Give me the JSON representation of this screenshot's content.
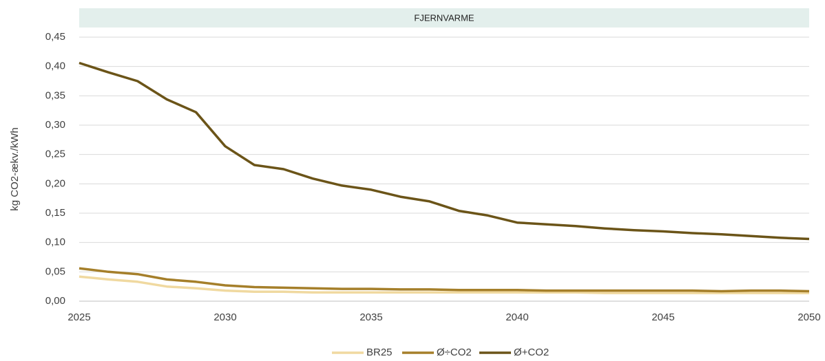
{
  "chart_data": {
    "type": "line",
    "title": "FJERNVARME",
    "y_label": "kg CO2-ækv./kWh",
    "x": [
      2025,
      2026,
      2027,
      2028,
      2029,
      2030,
      2031,
      2032,
      2033,
      2034,
      2035,
      2036,
      2037,
      2038,
      2039,
      2040,
      2041,
      2042,
      2043,
      2044,
      2045,
      2046,
      2047,
      2048,
      2049,
      2050
    ],
    "series": [
      {
        "name": "BR25",
        "color": "#f0d9a0",
        "values": [
          0.042,
          0.037,
          0.033,
          0.025,
          0.022,
          0.018,
          0.016,
          0.016,
          0.015,
          0.015,
          0.015,
          0.015,
          0.015,
          0.015,
          0.015,
          0.015,
          0.015,
          0.015,
          0.014,
          0.014,
          0.014,
          0.014,
          0.014,
          0.014,
          0.014,
          0.014
        ]
      },
      {
        "name": "Ø÷CO2",
        "color": "#a57f2a",
        "values": [
          0.056,
          0.05,
          0.046,
          0.037,
          0.033,
          0.027,
          0.024,
          0.023,
          0.022,
          0.021,
          0.021,
          0.02,
          0.02,
          0.019,
          0.019,
          0.019,
          0.018,
          0.018,
          0.018,
          0.018,
          0.018,
          0.018,
          0.017,
          0.018,
          0.018,
          0.017
        ]
      },
      {
        "name": "Ø+CO2",
        "color": "#6b5418",
        "values": [
          0.406,
          0.39,
          0.375,
          0.344,
          0.322,
          0.264,
          0.232,
          0.225,
          0.209,
          0.197,
          0.19,
          0.178,
          0.17,
          0.154,
          0.146,
          0.134,
          0.131,
          0.128,
          0.124,
          0.121,
          0.119,
          0.116,
          0.114,
          0.111,
          0.108,
          0.106
        ]
      }
    ],
    "xlim": [
      2025,
      2050
    ],
    "xticks": [
      2025,
      2030,
      2035,
      2040,
      2045,
      2050
    ],
    "ylim": [
      0,
      0.45
    ],
    "yticks": [
      {
        "value": 0,
        "label": "0,00"
      },
      {
        "value": 0.05,
        "label": "0,05"
      },
      {
        "value": 0.1,
        "label": "0,10"
      },
      {
        "value": 0.15,
        "label": "0,15"
      },
      {
        "value": 0.2,
        "label": "0,20"
      },
      {
        "value": 0.25,
        "label": "0,25"
      },
      {
        "value": 0.3,
        "label": "0,30"
      },
      {
        "value": 0.35,
        "label": "0,35"
      },
      {
        "value": 0.4,
        "label": "0,40"
      },
      {
        "value": 0.45,
        "label": "0,45"
      }
    ],
    "grid": true,
    "legend": "bottom"
  }
}
